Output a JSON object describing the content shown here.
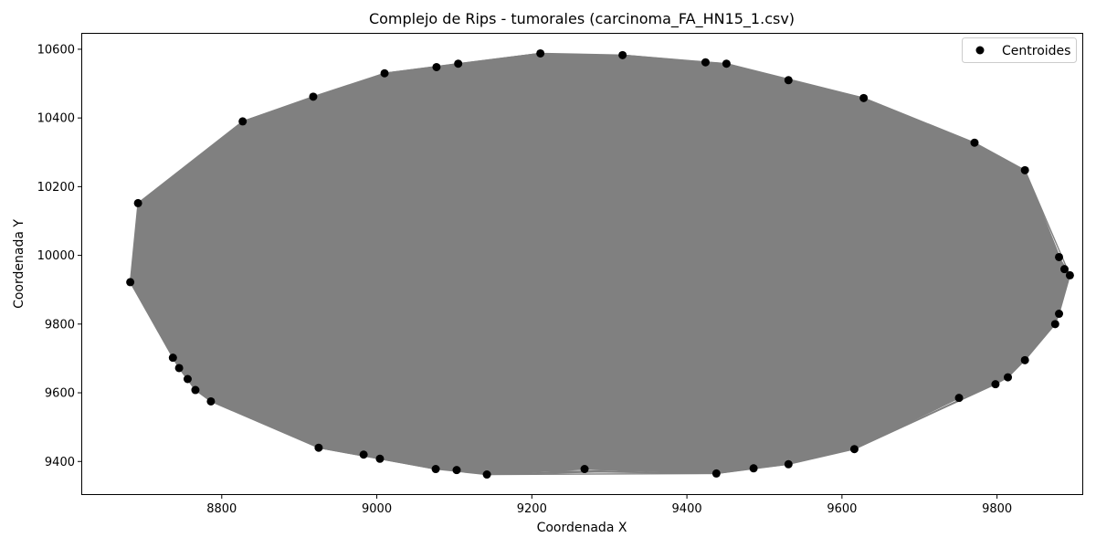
{
  "chart_data": {
    "type": "scatter",
    "title": "Complejo de Rips - tumorales (carcinoma_FA_HN15_1.csv)",
    "xlabel": "Coordenada X",
    "ylabel": "Coordenada Y",
    "xlim": [
      8620,
      9910
    ],
    "ylim": [
      9305,
      10645
    ],
    "xticks": [
      8800,
      9000,
      9200,
      9400,
      9600,
      9800
    ],
    "yticks": [
      9400,
      9600,
      9800,
      10000,
      10200,
      10400,
      10600
    ],
    "xtick_labels": [
      "8800",
      "9000",
      "9200",
      "9400",
      "9600",
      "9800"
    ],
    "ytick_labels": [
      "9400",
      "9600",
      "9800",
      "10000",
      "10200",
      "10400",
      "10600"
    ],
    "grid": false,
    "legend": {
      "placement": "top-right",
      "entries": [
        "Centroides"
      ]
    },
    "colors": {
      "points": "#000000",
      "edges": "#808080"
    },
    "series": [
      {
        "name": "Centroides",
        "points": [
          [
            8682,
            9922
          ],
          [
            8692,
            10152
          ],
          [
            8827,
            10390
          ],
          [
            8918,
            10462
          ],
          [
            9010,
            10530
          ],
          [
            9077,
            10548
          ],
          [
            9105,
            10558
          ],
          [
            9211,
            10588
          ],
          [
            9317,
            10583
          ],
          [
            9424,
            10562
          ],
          [
            9451,
            10558
          ],
          [
            9531,
            10510
          ],
          [
            9628,
            10458
          ],
          [
            9771,
            10328
          ],
          [
            9836,
            10248
          ],
          [
            9880,
            9995
          ],
          [
            9887,
            9960
          ],
          [
            9894,
            9942
          ],
          [
            9880,
            9830
          ],
          [
            9875,
            9800
          ],
          [
            9836,
            9695
          ],
          [
            9814,
            9645
          ],
          [
            9798,
            9625
          ],
          [
            9751,
            9585
          ],
          [
            9616,
            9436
          ],
          [
            9531,
            9392
          ],
          [
            9486,
            9380
          ],
          [
            9438,
            9365
          ],
          [
            9268,
            9378
          ],
          [
            9142,
            9362
          ],
          [
            9103,
            9375
          ],
          [
            9076,
            9378
          ],
          [
            9004,
            9408
          ],
          [
            8983,
            9420
          ],
          [
            8925,
            9440
          ],
          [
            8786,
            9575
          ],
          [
            8766,
            9608
          ],
          [
            8756,
            9640
          ],
          [
            8745,
            9672
          ],
          [
            8737,
            9702
          ]
        ]
      }
    ]
  }
}
